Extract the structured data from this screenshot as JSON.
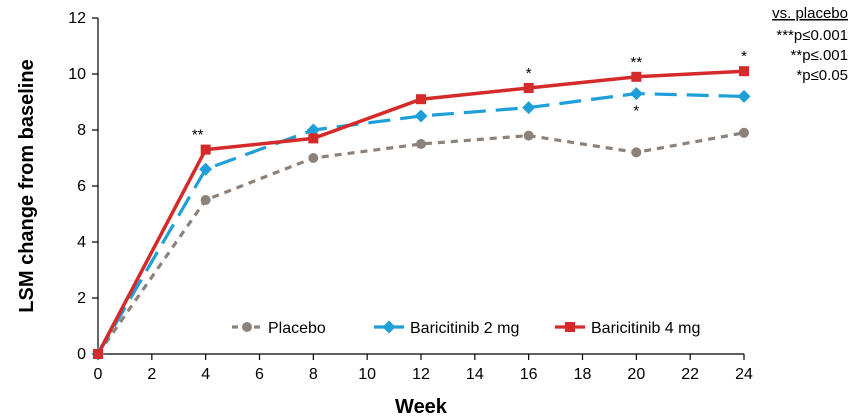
{
  "chart_data": {
    "type": "line",
    "xlabel": "Week",
    "ylabel": "LSM change from baseline",
    "xlim": [
      0,
      24
    ],
    "ylim": [
      0,
      12
    ],
    "xticks": [
      "0",
      "2",
      "4",
      "6",
      "8",
      "10",
      "12",
      "14",
      "16",
      "18",
      "20",
      "22",
      "24"
    ],
    "yticks": [
      "0",
      "2",
      "4",
      "6",
      "8",
      "10",
      "12"
    ],
    "grid": false,
    "legend_position": "bottom-right",
    "series": [
      {
        "name": "Placebo",
        "color": "#8c827a",
        "marker": "circle",
        "dash": "short",
        "x": [
          0,
          4,
          8,
          12,
          16,
          20,
          24
        ],
        "values": [
          0,
          5.5,
          7.0,
          7.5,
          7.8,
          7.2,
          7.9
        ]
      },
      {
        "name": "Baricitinib 2 mg",
        "color": "#1e9fd8",
        "marker": "diamond",
        "dash": "long",
        "x": [
          0,
          4,
          8,
          12,
          16,
          20,
          24
        ],
        "values": [
          0,
          6.6,
          8.0,
          8.5,
          8.8,
          9.3,
          9.2
        ]
      },
      {
        "name": "Baricitinib 4 mg",
        "color": "#d42a2a",
        "marker": "square",
        "dash": "solid",
        "x": [
          0,
          4,
          8,
          12,
          16,
          20,
          24
        ],
        "values": [
          0,
          7.3,
          7.7,
          9.1,
          9.5,
          9.9,
          10.1
        ]
      }
    ],
    "annotations": [
      {
        "text": "**",
        "x": 4,
        "y": 7.3,
        "position": "above"
      },
      {
        "text": "*",
        "x": 16,
        "y": 9.5,
        "position": "above"
      },
      {
        "text": "**",
        "x": 20,
        "y": 9.9,
        "position": "above"
      },
      {
        "text": "*",
        "x": 20,
        "y": 9.3,
        "position": "below"
      },
      {
        "text": "*",
        "x": 24,
        "y": 10.1,
        "position": "above"
      }
    ],
    "significance_key": {
      "title": "vs. placebo",
      "lines": [
        "***p≤0.001",
        "**p≤.001",
        "*p≤0.05"
      ]
    }
  }
}
